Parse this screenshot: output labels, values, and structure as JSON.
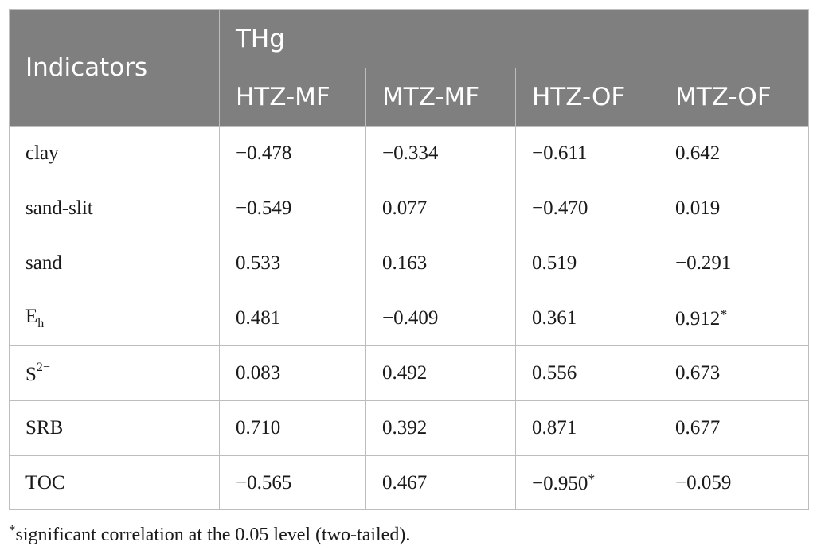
{
  "header": {
    "indicators": "Indicators",
    "group": "THg",
    "columns": [
      "HTZ-MF",
      "MTZ-MF",
      "HTZ-OF",
      "MTZ-OF"
    ]
  },
  "rows": [
    {
      "label": "clay",
      "values": [
        "−0.478",
        "−0.334",
        "−0.611",
        "0.642"
      ]
    },
    {
      "label": "sand-slit",
      "values": [
        "−0.549",
        "0.077",
        "−0.470",
        "0.019"
      ]
    },
    {
      "label": "sand",
      "values": [
        "0.533",
        "0.163",
        "0.519",
        "−0.291"
      ]
    },
    {
      "label": "E",
      "label_sub": "h",
      "values": [
        "0.481",
        "−0.409",
        "0.361",
        "0.912"
      ],
      "star_col": 3
    },
    {
      "label": "S",
      "label_sup": "2−",
      "values": [
        "0.083",
        "0.492",
        "0.556",
        "0.673"
      ]
    },
    {
      "label": "SRB",
      "values": [
        "0.710",
        "0.392",
        "0.871",
        "0.677"
      ]
    },
    {
      "label": "TOC",
      "values": [
        "−0.565",
        "0.467",
        "−0.950",
        "−0.059"
      ],
      "star_col": 2
    }
  ],
  "star_mark": "*",
  "footnote": {
    "mark": "*",
    "text": "significant correlation at the 0.05 level (two-tailed)."
  }
}
